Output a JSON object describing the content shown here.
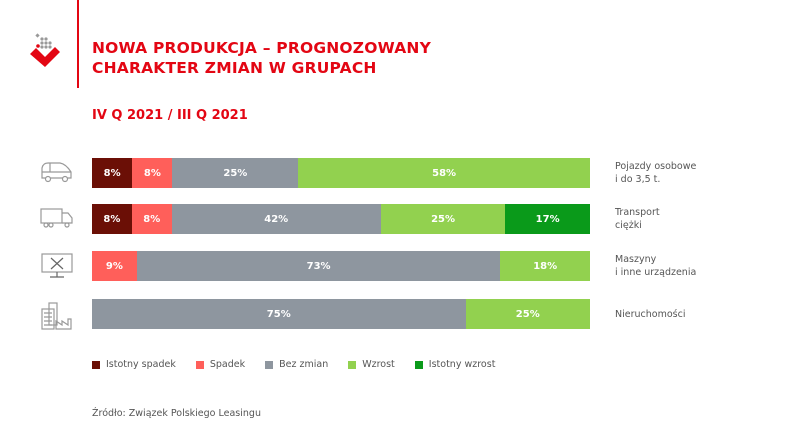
{
  "header": {
    "title_line1": "NOWA PRODUKCJA – PROGNOZOWANY",
    "title_line2": "CHARAKTER ZMIAN W GRUPACH",
    "subtitle": "IV Q 2021 / III Q 2021"
  },
  "colors": {
    "brand": "#e30613"
  },
  "chart_data": {
    "type": "bar",
    "orientation": "horizontal",
    "stacked": true,
    "unit": "%",
    "categories": [
      "Pojazdy osobowe i do 3,5 t.",
      "Transport ciężki",
      "Maszyny i inne urządzenia",
      "Nieruchomości"
    ],
    "category_lines": [
      [
        "Pojazdy osobowe",
        "i do 3,5 t."
      ],
      [
        "Transport",
        "ciężki"
      ],
      [
        "Maszyny",
        "i inne urządzenia"
      ],
      [
        "Nieruchomości",
        ""
      ]
    ],
    "icons": [
      "car-icon",
      "truck-icon",
      "machine-tools-icon",
      "building-factory-icon"
    ],
    "series": [
      {
        "name": "Istotny spadek",
        "color": "#6b0f06",
        "values": [
          8,
          8,
          0,
          0
        ]
      },
      {
        "name": "Spadek",
        "color": "#ff5f5a",
        "values": [
          8,
          8,
          9,
          0
        ]
      },
      {
        "name": "Bez zmian",
        "color": "#8e969f",
        "values": [
          25,
          42,
          73,
          75
        ]
      },
      {
        "name": "Wzrost",
        "color": "#92d14f",
        "values": [
          58,
          25,
          18,
          25
        ]
      },
      {
        "name": "Istotny wzrost",
        "color": "#0a9a1a",
        "values": [
          0,
          17,
          0,
          0
        ]
      }
    ],
    "legend_position": "bottom",
    "grid": false
  },
  "source": "Źródło: Związek Polskiego Leasingu"
}
